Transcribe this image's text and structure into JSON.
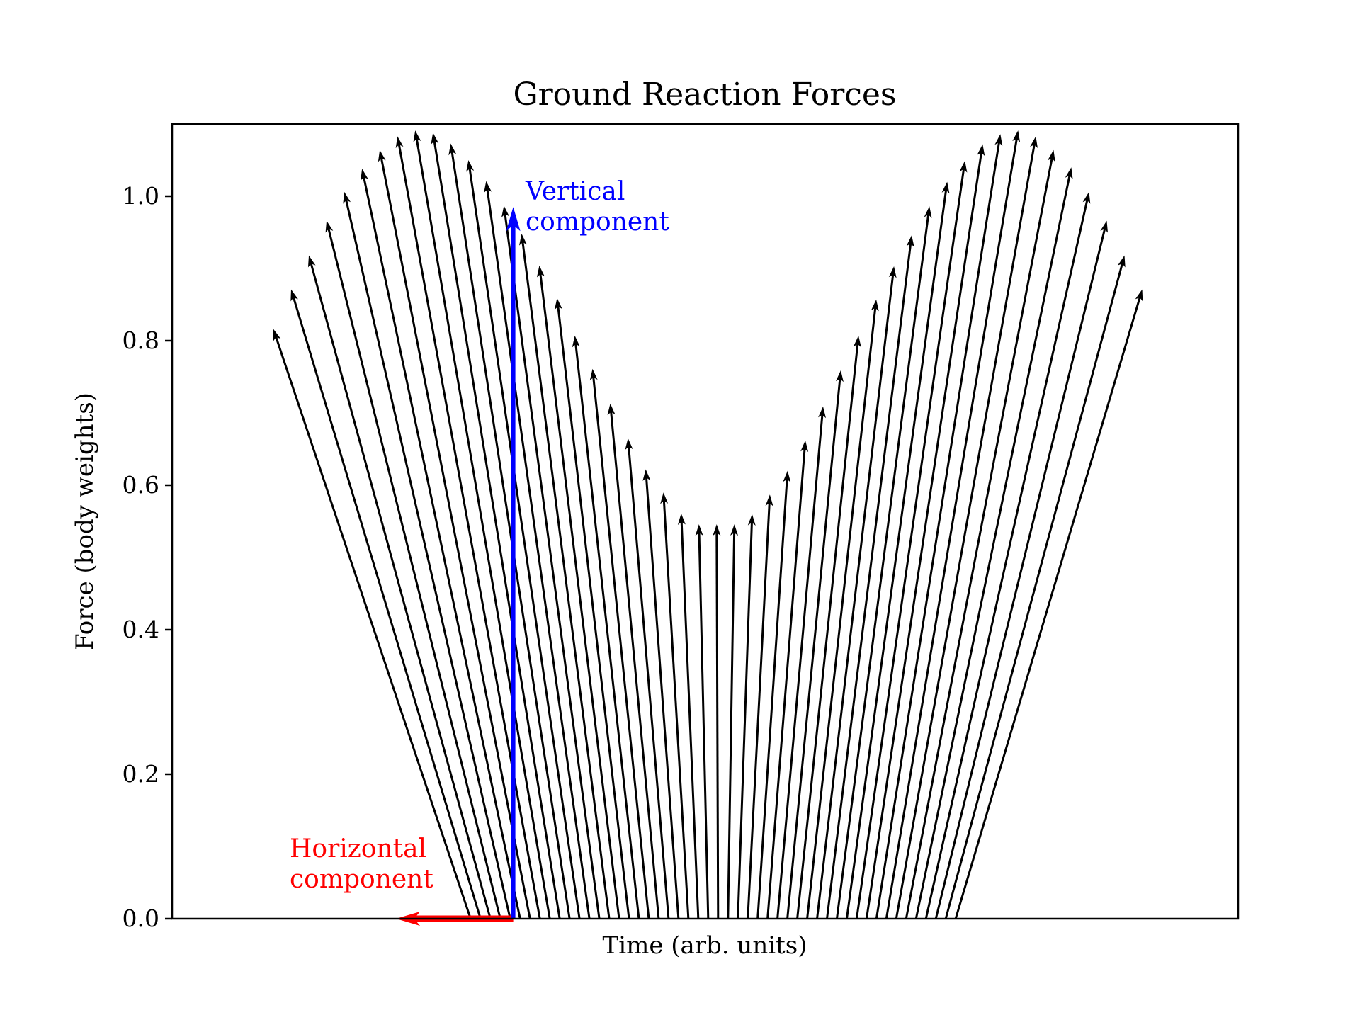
{
  "chart_data": {
    "type": "quiver",
    "title": "Ground Reaction Forces",
    "xlabel": "Time (arb. units)",
    "ylabel": "Force (body weights)",
    "ylim": [
      0.0,
      1.1
    ],
    "xlim": [
      0.0,
      1.0
    ],
    "x_ticks_shown": false,
    "yticks": [
      "0.0",
      "0.2",
      "0.4",
      "0.6",
      "0.8",
      "1.0"
    ],
    "grid": false,
    "arrow_color": "#000000",
    "base_range": [
      0.28,
      0.735
    ],
    "arrow_count": 50,
    "tips": {
      "x_start": 0.095,
      "x_end": 0.91,
      "y": [
        0.816,
        0.871,
        0.918,
        0.966,
        1.006,
        1.038,
        1.064,
        1.083,
        1.091,
        1.088,
        1.073,
        1.05,
        1.021,
        0.987,
        0.948,
        0.904,
        0.859,
        0.807,
        0.761,
        0.713,
        0.665,
        0.622,
        0.59,
        0.561,
        0.546,
        0.546,
        0.546,
        0.56,
        0.587,
        0.62,
        0.662,
        0.709,
        0.759,
        0.807,
        0.857,
        0.903,
        0.946,
        0.986,
        1.02,
        1.049,
        1.072,
        1.086,
        1.091,
        1.083,
        1.064,
        1.04,
        1.006,
        0.966,
        0.918,
        0.871
      ]
    },
    "components": {
      "vertical": {
        "label_line1": "Vertical",
        "label_line2": "component",
        "color": "#0000ff",
        "x": 0.32,
        "y_from": 0.0,
        "y_to": 0.985
      },
      "horizontal": {
        "label_line1": "Horizontal",
        "label_line2": "component",
        "color": "#ff0000",
        "y": 0.0,
        "x_from": 0.32,
        "x_to": 0.21
      }
    }
  }
}
